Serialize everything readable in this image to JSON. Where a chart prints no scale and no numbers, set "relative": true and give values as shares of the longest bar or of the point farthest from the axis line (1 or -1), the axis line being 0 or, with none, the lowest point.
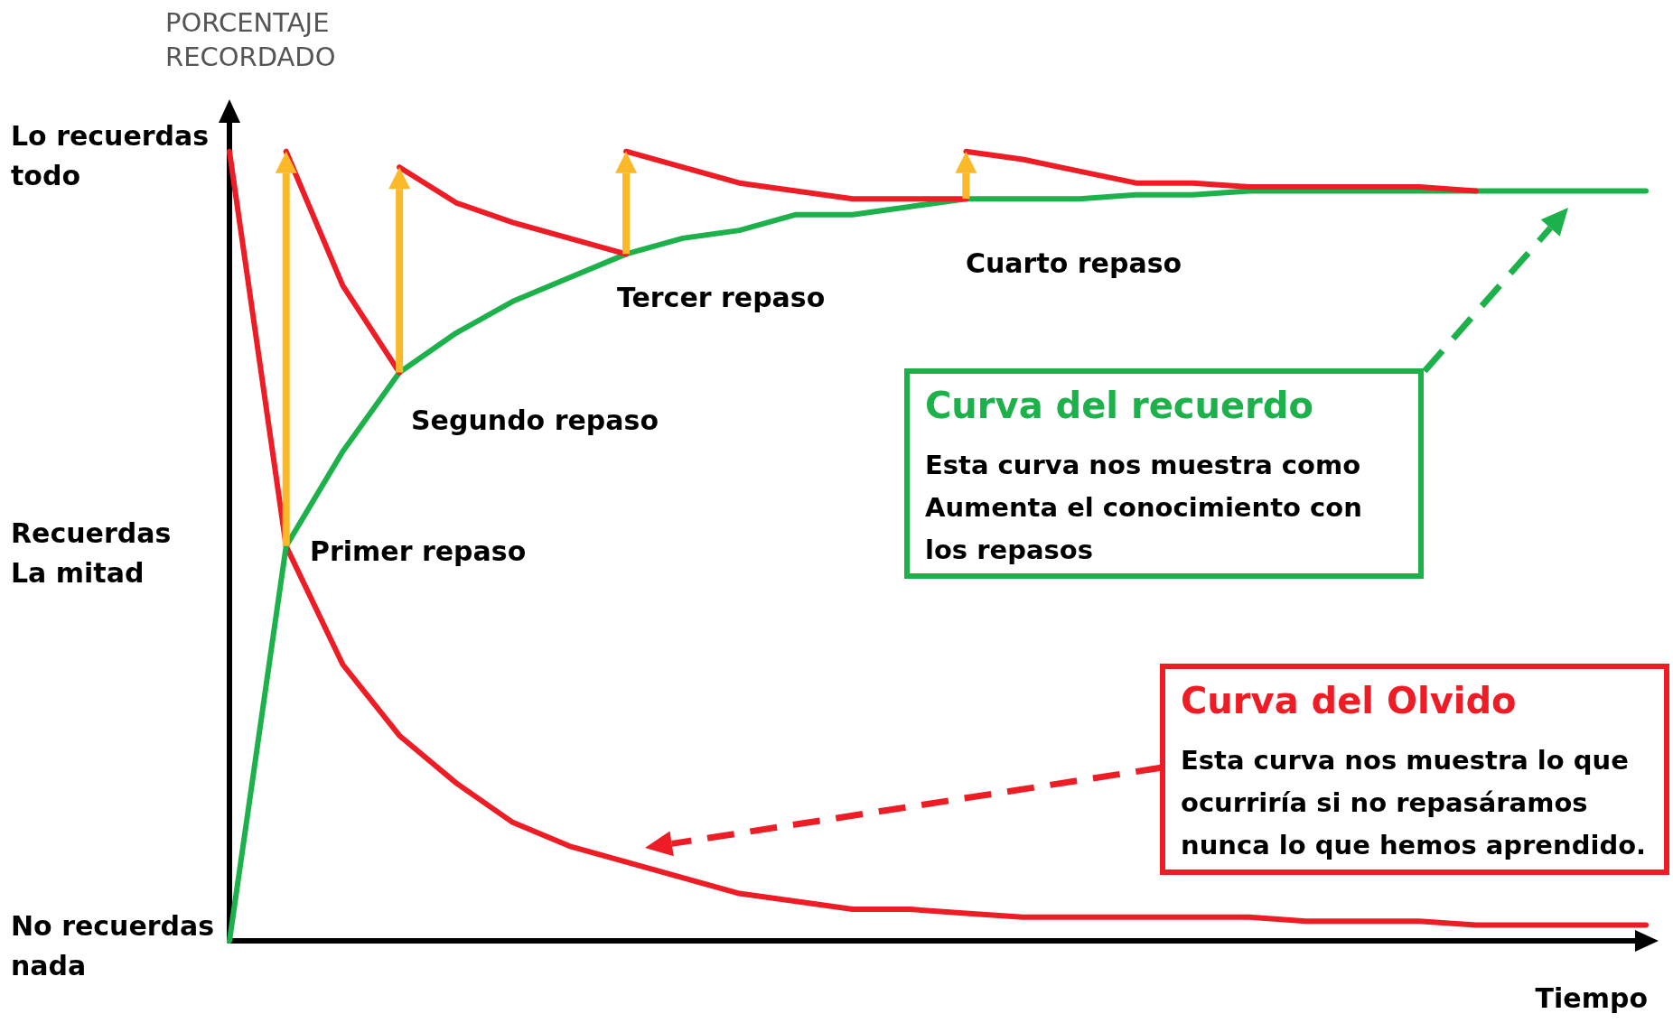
{
  "chart_data": {
    "type": "line",
    "relative": true,
    "ylabel": "PORCENTAJE\nRECORDADO",
    "xlabel": "Tiempo",
    "categories": [
      null,
      null,
      null,
      null,
      null,
      null,
      null,
      null,
      null,
      null,
      null,
      null,
      null,
      null,
      null,
      null,
      null,
      null,
      null,
      null,
      null,
      null,
      null,
      null,
      null,
      null
    ],
    "series": [
      {
        "name": "Curva del Olvido",
        "color": "#ee1c25",
        "values": [
          1,
          0.5,
          0.35,
          0.26,
          0.2,
          0.15,
          0.12,
          0.1,
          0.08,
          0.06,
          0.05,
          0.04,
          0.04,
          0.035,
          0.03,
          0.03,
          0.03,
          0.03,
          0.03,
          0.025,
          0.025,
          0.025,
          0.02,
          0.02,
          0.02,
          0.02
        ]
      },
      {
        "name": "Curva del recuerdo",
        "color": "#1db14b",
        "values": [
          0,
          0.5,
          0.62,
          0.72,
          0.77,
          0.81,
          0.84,
          0.87,
          0.89,
          0.9,
          0.92,
          0.92,
          0.93,
          0.94,
          0.94,
          0.94,
          0.945,
          0.945,
          0.95,
          0.95,
          0.95,
          0.95,
          0.95,
          0.95,
          0.95,
          0.95
        ]
      },
      {
        "color": "#ee1c25",
        "values": [
          null,
          1,
          0.83,
          0.72,
          null,
          null,
          null,
          null,
          null,
          null,
          null,
          null,
          null,
          null,
          null,
          null,
          null,
          null,
          null,
          null,
          null,
          null,
          null,
          null,
          null,
          null
        ]
      },
      {
        "color": "#ee1c25",
        "values": [
          null,
          null,
          null,
          0.98,
          0.935,
          0.91,
          0.89,
          0.87,
          null,
          null,
          null,
          null,
          null,
          null,
          null,
          null,
          null,
          null,
          null,
          null,
          null,
          null,
          null,
          null,
          null,
          null
        ]
      },
      {
        "color": "#ee1c25",
        "values": [
          null,
          null,
          null,
          null,
          null,
          null,
          null,
          1,
          0.98,
          0.96,
          0.95,
          0.94,
          0.94,
          0.94,
          null,
          null,
          null,
          null,
          null,
          null,
          null,
          null,
          null,
          null,
          null,
          null
        ]
      },
      {
        "color": "#ee1c25",
        "values": [
          null,
          null,
          null,
          null,
          null,
          null,
          null,
          null,
          null,
          null,
          null,
          null,
          null,
          1,
          0.99,
          0.975,
          0.96,
          0.96,
          0.955,
          0.955,
          0.955,
          0.955,
          0.95,
          null,
          null,
          null
        ]
      }
    ],
    "grid": false,
    "legend": false,
    "marker": "none",
    "line_style": "solid",
    "annotations": [
      "Lo recuerdas\ntodo",
      "Recuerdas\nLa mitad",
      "No recuerdas\nnada",
      "Primer repaso",
      "Segundo repaso",
      "Tercer repaso",
      "Cuarto repaso",
      "Esta curva nos muestra como Aumenta el conocimiento con los repasos",
      "Esta curva nos muestra lo que ocurriría si no repasáramos nunca lo que hemos aprendido."
    ]
  }
}
